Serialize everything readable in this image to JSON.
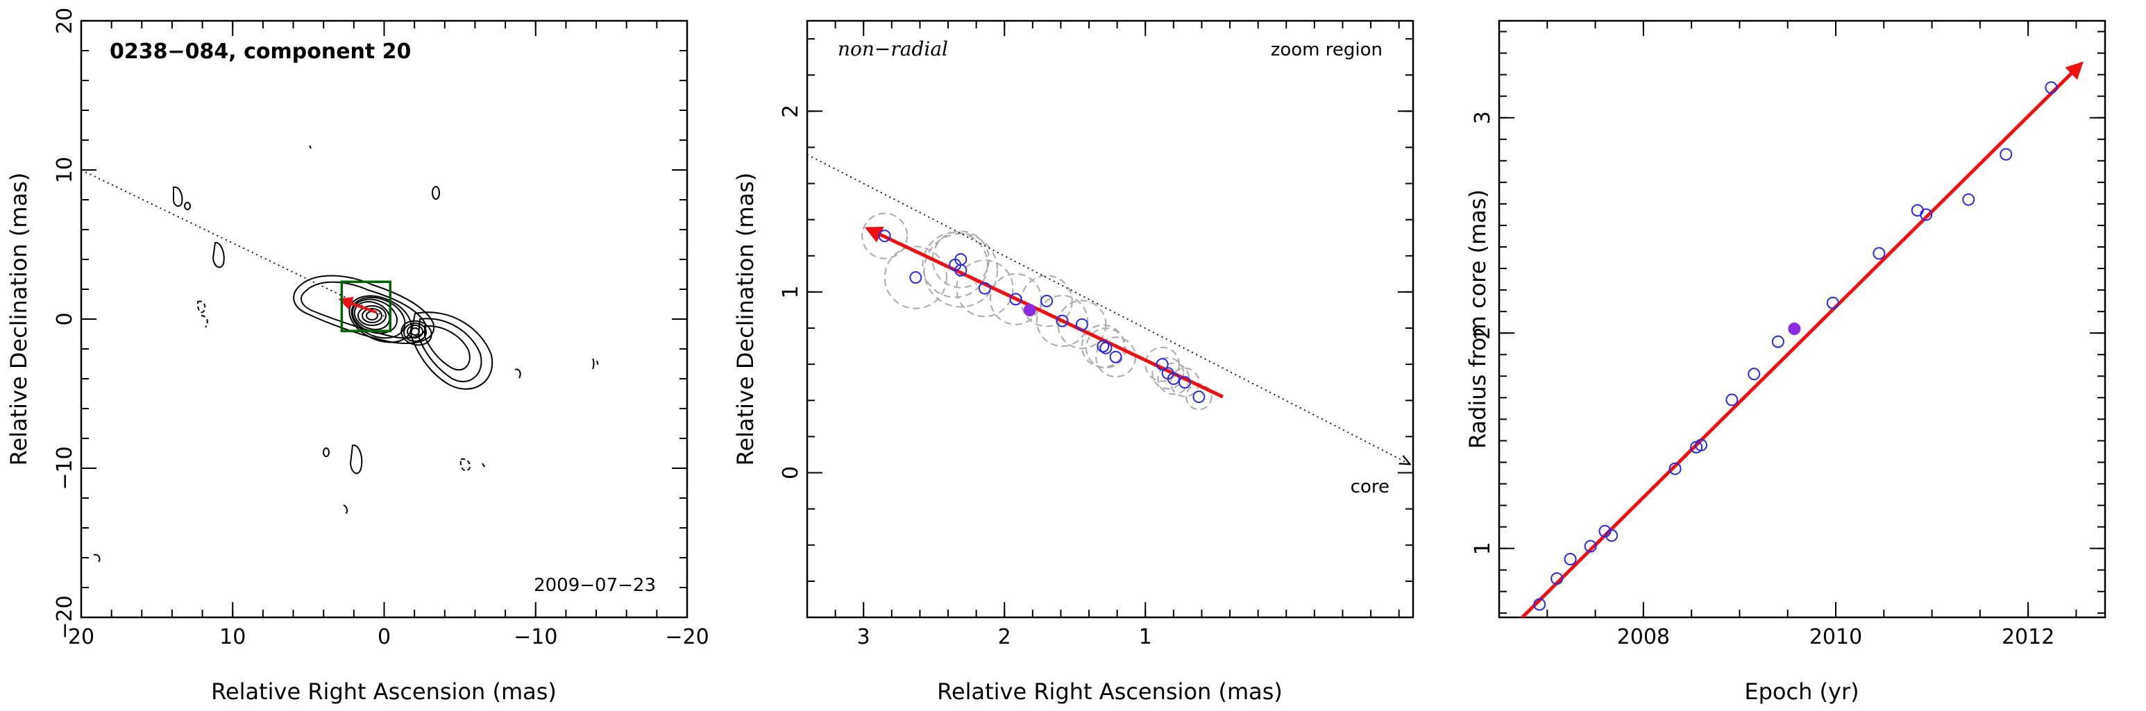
{
  "colors": {
    "fit": "#ee1111",
    "points_open": "#2a2ae0",
    "point_filled": "#8a2be2",
    "ellipses": "#aaaaaa",
    "zoom_box": "#006400",
    "contours": "#000000"
  },
  "chart_data": [
    {
      "type": "contour",
      "title": "0238−084, component 20",
      "date": "2009−07−23",
      "xlabel": "Relative Right Ascension (mas)",
      "ylabel": "Relative Declination (mas)",
      "xlim": [
        20,
        -20
      ],
      "ylim": [
        -20,
        20
      ],
      "xticks": [
        20,
        10,
        0,
        -10,
        -20
      ],
      "yticks": [
        -20,
        -10,
        0,
        10,
        20
      ],
      "xtick_labels": [
        "20",
        "10",
        "0",
        "−10",
        "−20"
      ],
      "ytick_labels": [
        "−20",
        "−10",
        "0",
        "10",
        "20"
      ],
      "zoom_box": {
        "x": [
          2.8,
          -0.4
        ],
        "y": [
          -0.8,
          2.5
        ]
      },
      "pa_line": {
        "from": [
          20,
          10
        ],
        "to": [
          0,
          0.2
        ]
      },
      "fit_vector": {
        "from": [
          0.5,
          0.45
        ],
        "to": [
          2.85,
          1.3
        ]
      }
    },
    {
      "type": "scatter",
      "xlabel": "Relative Right Ascension (mas)",
      "ylabel": "Relative Declination (mas)",
      "xlim": [
        3.4,
        -0.9
      ],
      "ylim": [
        -0.8,
        2.5
      ],
      "xticks": [
        3,
        2,
        1
      ],
      "yticks": [
        0,
        1,
        2
      ],
      "xtick_labels": [
        "3",
        "2",
        "1"
      ],
      "ytick_labels": [
        "0",
        "1",
        "2"
      ],
      "annotations": {
        "motion": "non−radial",
        "region": "zoom region",
        "core": "core"
      },
      "points": [
        {
          "x": 2.85,
          "y": 1.31,
          "r": 0.16
        },
        {
          "x": 2.63,
          "y": 1.08,
          "r": 0.22
        },
        {
          "x": 2.35,
          "y": 1.15,
          "r": 0.23
        },
        {
          "x": 2.31,
          "y": 1.18,
          "r": 0.2
        },
        {
          "x": 2.31,
          "y": 1.12,
          "r": 0.26
        },
        {
          "x": 2.14,
          "y": 1.02,
          "r": 0.2
        },
        {
          "x": 1.92,
          "y": 0.96,
          "r": 0.18
        },
        {
          "x": 1.7,
          "y": 0.95,
          "r": 0.18
        },
        {
          "x": 1.59,
          "y": 0.84,
          "r": 0.18
        },
        {
          "x": 1.45,
          "y": 0.82,
          "r": 0.17
        },
        {
          "x": 1.3,
          "y": 0.7,
          "r": 0.15
        },
        {
          "x": 1.28,
          "y": 0.69,
          "r": 0.14
        },
        {
          "x": 1.21,
          "y": 0.64,
          "r": 0.14
        },
        {
          "x": 0.88,
          "y": 0.6,
          "r": 0.12
        },
        {
          "x": 0.84,
          "y": 0.55,
          "r": 0.11
        },
        {
          "x": 0.8,
          "y": 0.52,
          "r": 0.11
        },
        {
          "x": 0.72,
          "y": 0.5,
          "r": 0.1
        },
        {
          "x": 0.62,
          "y": 0.42,
          "r": 0.09
        }
      ],
      "highlight_point": {
        "x": 1.82,
        "y": 0.9
      },
      "fit_vector": {
        "from": [
          0.45,
          0.42
        ],
        "to": [
          2.97,
          1.35
        ]
      },
      "pa_line": {
        "from": [
          3.4,
          1.76
        ],
        "to": [
          -0.9,
          0.05
        ]
      }
    },
    {
      "type": "scatter",
      "xlabel": "Epoch (yr)",
      "ylabel": "Radius from core (mas)",
      "xlim": [
        2006.5,
        2012.8
      ],
      "ylim": [
        0.68,
        3.45
      ],
      "xticks": [
        2008,
        2010,
        2012
      ],
      "yticks": [
        1,
        2,
        3
      ],
      "xtick_labels": [
        "2008",
        "2010",
        "2012"
      ],
      "ytick_labels": [
        "1",
        "2",
        "3"
      ],
      "x": [
        2006.92,
        2007.1,
        2007.24,
        2007.45,
        2007.6,
        2007.67,
        2008.33,
        2008.55,
        2008.6,
        2008.92,
        2009.15,
        2009.4,
        2009.97,
        2010.45,
        2010.85,
        2010.94,
        2011.38,
        2011.77,
        2012.24
      ],
      "y": [
        0.74,
        0.86,
        0.95,
        1.01,
        1.08,
        1.06,
        1.37,
        1.47,
        1.48,
        1.69,
        1.81,
        1.96,
        2.14,
        2.37,
        2.57,
        2.55,
        2.62,
        2.83,
        3.14
      ],
      "highlight_point": {
        "x": 2009.57,
        "y": 2.02
      },
      "fit_vector": {
        "from": [
          2006.65,
          0.64
        ],
        "to": [
          2012.55,
          3.25
        ]
      }
    }
  ]
}
